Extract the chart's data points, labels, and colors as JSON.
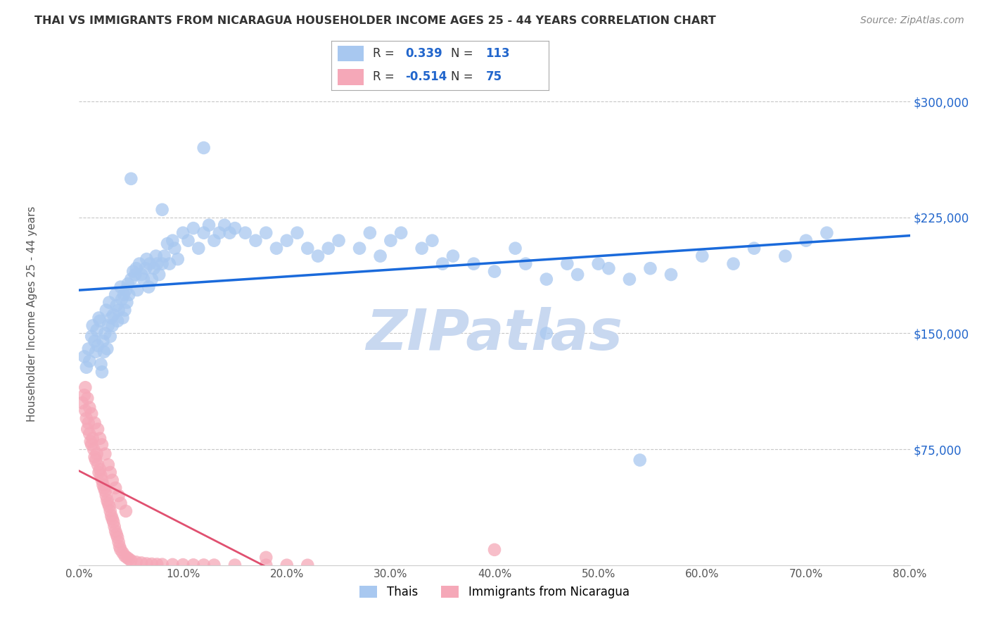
{
  "title": "THAI VS IMMIGRANTS FROM NICARAGUA HOUSEHOLDER INCOME AGES 25 - 44 YEARS CORRELATION CHART",
  "source": "Source: ZipAtlas.com",
  "ylabel_label": "Householder Income Ages 25 - 44 years",
  "legend_labels": [
    "Thais",
    "Immigrants from Nicaragua"
  ],
  "R_thai": 0.339,
  "N_thai": 113,
  "R_nica": -0.514,
  "N_nica": 75,
  "color_thai": "#a8c8f0",
  "color_nica": "#f5a8b8",
  "color_line_thai": "#1a6adb",
  "color_line_nica": "#e05070",
  "background": "#ffffff",
  "grid_color": "#c8c8c8",
  "watermark": "ZIPatlas",
  "watermark_color": "#c8d8f0",
  "title_color": "#333333",
  "source_color": "#888888",
  "tick_label_color_y": "#2266cc",
  "tick_label_color_x": "#555555",
  "xlim": [
    0.0,
    0.8
  ],
  "ylim": [
    0,
    325000
  ],
  "thai_scatter_x": [
    0.005,
    0.007,
    0.009,
    0.01,
    0.012,
    0.013,
    0.015,
    0.016,
    0.017,
    0.018,
    0.019,
    0.02,
    0.021,
    0.022,
    0.023,
    0.024,
    0.025,
    0.026,
    0.027,
    0.028,
    0.029,
    0.03,
    0.031,
    0.032,
    0.033,
    0.035,
    0.036,
    0.037,
    0.038,
    0.04,
    0.041,
    0.042,
    0.043,
    0.044,
    0.045,
    0.046,
    0.047,
    0.048,
    0.05,
    0.052,
    0.054,
    0.055,
    0.056,
    0.058,
    0.06,
    0.062,
    0.064,
    0.065,
    0.067,
    0.068,
    0.07,
    0.072,
    0.074,
    0.075,
    0.077,
    0.08,
    0.082,
    0.085,
    0.087,
    0.09,
    0.092,
    0.095,
    0.1,
    0.105,
    0.11,
    0.115,
    0.12,
    0.125,
    0.13,
    0.135,
    0.14,
    0.145,
    0.15,
    0.16,
    0.17,
    0.18,
    0.19,
    0.2,
    0.21,
    0.22,
    0.23,
    0.24,
    0.25,
    0.27,
    0.28,
    0.29,
    0.3,
    0.31,
    0.33,
    0.34,
    0.35,
    0.36,
    0.38,
    0.4,
    0.42,
    0.43,
    0.45,
    0.47,
    0.48,
    0.5,
    0.51,
    0.53,
    0.55,
    0.57,
    0.6,
    0.63,
    0.65,
    0.68,
    0.7,
    0.72,
    0.12,
    0.08,
    0.05,
    0.45,
    0.54
  ],
  "thai_scatter_y": [
    135000,
    128000,
    140000,
    132000,
    148000,
    155000,
    145000,
    138000,
    152000,
    142000,
    160000,
    158000,
    130000,
    125000,
    145000,
    138000,
    150000,
    165000,
    140000,
    155000,
    170000,
    148000,
    160000,
    155000,
    162000,
    175000,
    168000,
    158000,
    165000,
    180000,
    172000,
    160000,
    175000,
    165000,
    178000,
    170000,
    182000,
    175000,
    185000,
    190000,
    188000,
    192000,
    178000,
    195000,
    188000,
    185000,
    192000,
    198000,
    180000,
    195000,
    185000,
    192000,
    200000,
    195000,
    188000,
    195000,
    200000,
    208000,
    195000,
    210000,
    205000,
    198000,
    215000,
    210000,
    218000,
    205000,
    215000,
    220000,
    210000,
    215000,
    220000,
    215000,
    218000,
    215000,
    210000,
    215000,
    205000,
    210000,
    215000,
    205000,
    200000,
    205000,
    210000,
    205000,
    215000,
    200000,
    210000,
    215000,
    205000,
    210000,
    195000,
    200000,
    195000,
    190000,
    205000,
    195000,
    185000,
    195000,
    188000,
    195000,
    192000,
    185000,
    192000,
    188000,
    200000,
    195000,
    205000,
    200000,
    210000,
    215000,
    270000,
    230000,
    250000,
    150000,
    68000
  ],
  "nica_scatter_x": [
    0.003,
    0.005,
    0.006,
    0.007,
    0.008,
    0.009,
    0.01,
    0.011,
    0.012,
    0.013,
    0.014,
    0.015,
    0.016,
    0.017,
    0.018,
    0.019,
    0.02,
    0.021,
    0.022,
    0.023,
    0.024,
    0.025,
    0.026,
    0.027,
    0.028,
    0.029,
    0.03,
    0.031,
    0.032,
    0.033,
    0.034,
    0.035,
    0.036,
    0.037,
    0.038,
    0.039,
    0.04,
    0.042,
    0.044,
    0.046,
    0.048,
    0.05,
    0.055,
    0.06,
    0.065,
    0.07,
    0.075,
    0.08,
    0.09,
    0.1,
    0.11,
    0.12,
    0.13,
    0.15,
    0.18,
    0.2,
    0.22,
    0.006,
    0.008,
    0.01,
    0.012,
    0.015,
    0.018,
    0.02,
    0.022,
    0.025,
    0.028,
    0.03,
    0.032,
    0.035,
    0.038,
    0.04,
    0.045,
    0.18,
    0.4
  ],
  "nica_scatter_y": [
    105000,
    110000,
    100000,
    95000,
    88000,
    92000,
    85000,
    80000,
    78000,
    82000,
    75000,
    70000,
    68000,
    72000,
    65000,
    60000,
    62000,
    58000,
    55000,
    52000,
    50000,
    48000,
    45000,
    42000,
    40000,
    38000,
    35000,
    32000,
    30000,
    28000,
    25000,
    22000,
    20000,
    18000,
    15000,
    12000,
    10000,
    8000,
    6000,
    5000,
    4000,
    3000,
    2000,
    1500,
    1000,
    800,
    600,
    500,
    400,
    300,
    200,
    150,
    100,
    80,
    60,
    40,
    20,
    115000,
    108000,
    102000,
    98000,
    92000,
    88000,
    82000,
    78000,
    72000,
    65000,
    60000,
    55000,
    50000,
    45000,
    40000,
    35000,
    5000,
    10000
  ]
}
